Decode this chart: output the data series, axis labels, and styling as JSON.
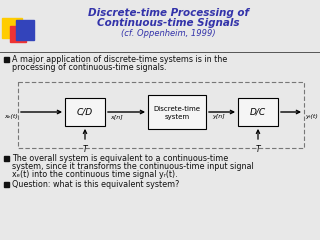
{
  "title_line1": "Discrete-time Processing of",
  "title_line2": "Continuous-time Signals",
  "title_line3": "(cf. Oppenheim, 1999)",
  "title_color": "#3333AA",
  "bg_color": "#E8E8E8",
  "bullet1_line1": "A major application of discrete-time systems is in the",
  "bullet1_line2": "processing of continuous-time signals.",
  "bullet2_line1": "The overall system is equivalent to a continuous-time",
  "bullet2_line2": "system, since it transforms the continuous-time input signal",
  "bullet2_line3": "xₑ(t) into the continuous time signal yᵣ(t).",
  "bullet3": "Question: what is this equivalent system?",
  "block_cd": "C/D",
  "block_dt_line1": "Discrete-time",
  "block_dt_line2": "system",
  "block_dc": "D/C",
  "label_xc": "xₑ(t)",
  "label_xn": "x[n]",
  "label_yn": "y[n]",
  "label_yr": "yᵣ(t)",
  "label_T": "T",
  "dashed_box_color": "#777777",
  "block_bg": "#F5F5F5",
  "text_color": "#111111",
  "accent_yellow": "#FFCC00",
  "accent_red": "#EE3333",
  "accent_blue": "#3344BB",
  "line_color": "#555555",
  "bullet_color": "#111111"
}
